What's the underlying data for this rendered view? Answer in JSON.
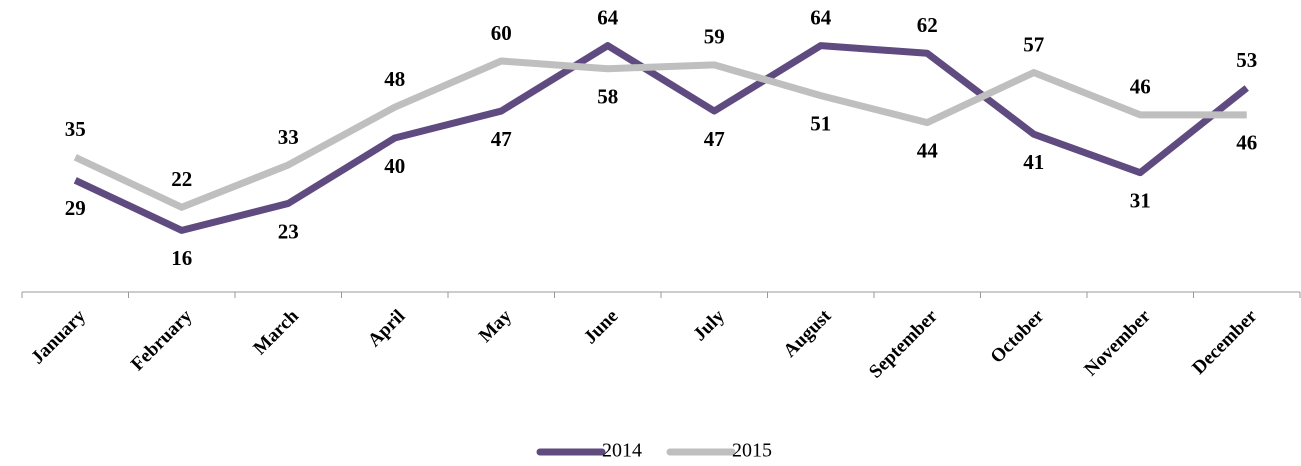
{
  "chart_data": {
    "type": "line",
    "categories": [
      "January",
      "February",
      "March",
      "April",
      "May",
      "June",
      "July",
      "August",
      "September",
      "October",
      "November",
      "December"
    ],
    "series": [
      {
        "name": "2014",
        "color": "#5f4b80",
        "values": [
          29,
          16,
          23,
          40,
          47,
          64,
          47,
          64,
          62,
          41,
          31,
          53
        ]
      },
      {
        "name": "2015",
        "color": "#bfbfbf",
        "values": [
          35,
          22,
          33,
          48,
          60,
          58,
          59,
          51,
          44,
          57,
          46,
          46
        ]
      }
    ],
    "ylim": [
      0,
      70
    ],
    "grid": false,
    "legend": "bottom"
  }
}
